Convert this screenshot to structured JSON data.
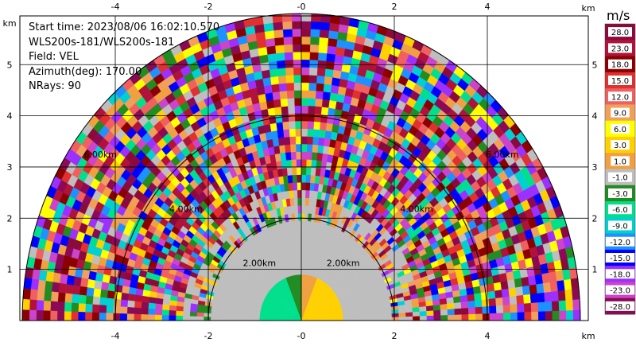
{
  "info": {
    "start_time": "Start time: 2023/08/06 16:02:10.570",
    "instrument": "WLS200s-181/WLS200s-181",
    "field": "Field: VEL",
    "azimuth": "Azimuth(deg): 170.00",
    "nrays": "NRays: 90"
  },
  "axes": {
    "x_ticks": [
      "-4",
      "-2",
      "-0",
      "2",
      "4"
    ],
    "y_ticks": [
      "1",
      "2",
      "3",
      "4",
      "5"
    ],
    "unit": "km"
  },
  "range_rings": [
    {
      "label": "2.00km",
      "km": 2
    },
    {
      "label": "4.00km",
      "km": 4
    },
    {
      "label": "6.00km",
      "km": 6
    }
  ],
  "colorbar": {
    "unit": "m/s",
    "labels": [
      "28.0",
      "23.0",
      "18.0",
      "15.0",
      "12.0",
      "9.0",
      "6.0",
      "3.0",
      "1.0",
      "-1.0",
      "-3.0",
      "-6.0",
      "-9.0",
      "-12.0",
      "-15.0",
      "-18.0",
      "-23.0",
      "-28.0"
    ],
    "colors": [
      "#8b0a3c",
      "#b0123a",
      "#8b0000",
      "#e03030",
      "#f06060",
      "#f0a05a",
      "#ffff00",
      "#ffd000",
      "#f0a040",
      "#bebebe",
      "#228b22",
      "#00e08c",
      "#00d0d0",
      "#1e90ff",
      "#0000ff",
      "#9b30ff",
      "#cc44cc",
      "#8b0a55"
    ]
  },
  "chart_data": {
    "type": "heatmap",
    "field": "VEL",
    "units": "m/s",
    "x_range_km": [
      -6,
      6
    ],
    "y_range_km": [
      0,
      5.9
    ],
    "max_range_km": 6.0
  }
}
